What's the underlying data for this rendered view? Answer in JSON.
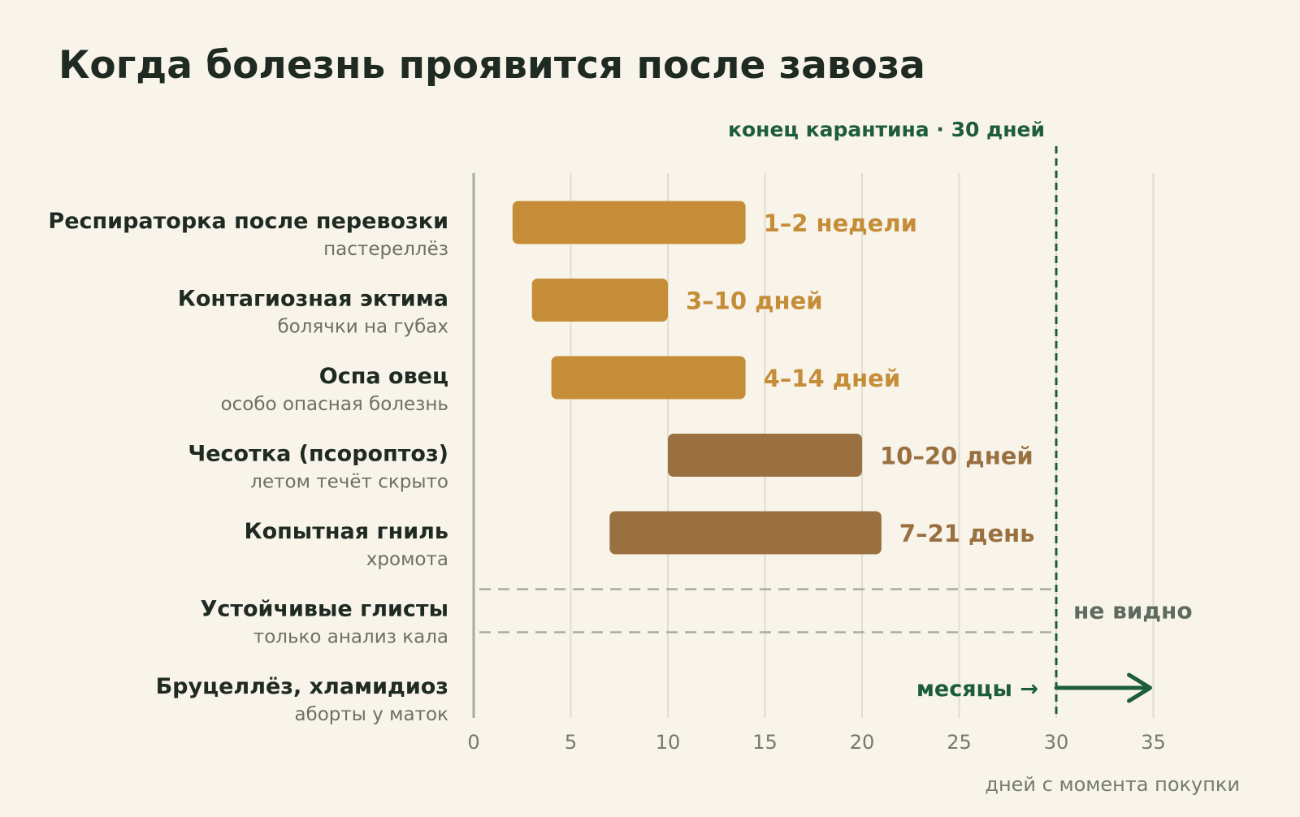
{
  "chart_data": {
    "type": "bar",
    "orientation": "horizontal-range",
    "title": "Когда болезнь проявится после завоза",
    "xlabel": "дней с момента покупки",
    "xlim": [
      0,
      35
    ],
    "x_ticks": [
      0,
      5,
      10,
      15,
      20,
      25,
      30,
      35
    ],
    "grid": true,
    "colors": {
      "early": "#c68d38",
      "late": "#9a7040",
      "quarantine": "#1d5c3c",
      "hidden": "#a5b09c"
    },
    "quarantine": {
      "x": 30,
      "label": "конец карантина · 30 дней"
    },
    "diseases": [
      {
        "name": "Респираторка после перевозки",
        "sub": "пастереллёз",
        "start": 2,
        "end": 14,
        "label": "1–2 недели",
        "tone": "early"
      },
      {
        "name": "Контагиозная эктима",
        "sub": "болячки на губах",
        "start": 3,
        "end": 10,
        "label": "3–10 дней",
        "tone": "early"
      },
      {
        "name": "Оспа овец",
        "sub": "особо опасная болезнь",
        "start": 4,
        "end": 14,
        "label": "4–14 дней",
        "tone": "early"
      },
      {
        "name": "Чесотка (псороптоз)",
        "sub": "летом течёт скрыто",
        "start": 10,
        "end": 20,
        "label": "10–20 дней",
        "tone": "late"
      },
      {
        "name": "Копытная гниль",
        "sub": "хромота",
        "start": 7,
        "end": 21,
        "label": "7–21 день",
        "tone": "late"
      },
      {
        "name": "Устойчивые глисты",
        "sub": "только анализ кала",
        "start": 0,
        "end": 30,
        "label": "не видно",
        "tone": "hidden"
      },
      {
        "name": "Бруцеллёз, хламидиоз",
        "sub": "аборты у маток",
        "start": 30,
        "end": 35,
        "label": "месяцы →",
        "tone": "arrow"
      }
    ]
  }
}
